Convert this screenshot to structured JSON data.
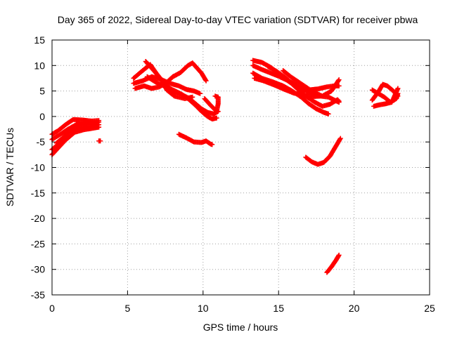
{
  "chart_data": {
    "type": "scatter",
    "title": "Day 365 of 2022, Sidereal Day-to-day VTEC variation (SDTVAR) for receiver pbwa",
    "xlabel": "GPS time / hours",
    "ylabel": "SDTVAR / TECUs",
    "xlim": [
      0,
      25
    ],
    "ylim": [
      -35,
      15
    ],
    "xticks": [
      0,
      5,
      10,
      15,
      20,
      25
    ],
    "yticks": [
      -35,
      -30,
      -25,
      -20,
      -15,
      -10,
      -5,
      0,
      5,
      10,
      15
    ],
    "grid": true,
    "marker": "plus",
    "series_color": "#ff0000",
    "tracks": [
      {
        "name": "t1",
        "points": [
          [
            0.0,
            -3.5
          ],
          [
            0.4,
            -2.8
          ],
          [
            0.9,
            -1.6
          ],
          [
            1.4,
            -0.6
          ],
          [
            2.0,
            -0.7
          ],
          [
            2.6,
            -0.9
          ],
          [
            3.1,
            -0.8
          ]
        ]
      },
      {
        "name": "t2",
        "points": [
          [
            0.0,
            -4.5
          ],
          [
            0.5,
            -3.6
          ],
          [
            1.0,
            -2.6
          ],
          [
            1.6,
            -1.6
          ],
          [
            2.2,
            -1.3
          ],
          [
            2.8,
            -1.2
          ],
          [
            3.1,
            -1.1
          ]
        ]
      },
      {
        "name": "t3",
        "points": [
          [
            0.0,
            -6.5
          ],
          [
            0.5,
            -5.2
          ],
          [
            1.0,
            -3.2
          ],
          [
            1.6,
            -2.4
          ],
          [
            2.2,
            -2.0
          ],
          [
            2.8,
            -1.8
          ],
          [
            3.1,
            -1.6
          ]
        ]
      },
      {
        "name": "t4",
        "points": [
          [
            0.0,
            -7.5
          ],
          [
            0.4,
            -6.2
          ],
          [
            0.9,
            -4.6
          ],
          [
            1.5,
            -3.1
          ],
          [
            2.1,
            -2.6
          ],
          [
            2.7,
            -2.3
          ],
          [
            3.1,
            -2.1
          ]
        ]
      },
      {
        "name": "t5",
        "points": [
          [
            0.3,
            -5.2
          ],
          [
            0.8,
            -4.0
          ],
          [
            1.3,
            -2.5
          ],
          [
            1.9,
            -1.5
          ],
          [
            2.5,
            -1.2
          ],
          [
            3.0,
            -1.2
          ]
        ]
      },
      {
        "name": "t6",
        "points": [
          [
            3.1,
            -4.8
          ],
          [
            3.2,
            -4.8
          ]
        ]
      },
      {
        "name": "t7",
        "points": [
          [
            5.4,
            7.5
          ],
          [
            6.0,
            9.0
          ],
          [
            6.5,
            10.2
          ],
          [
            6.9,
            8.5
          ],
          [
            7.3,
            7.0
          ],
          [
            7.6,
            5.2
          ],
          [
            8.1,
            4.0
          ],
          [
            8.8,
            3.5
          ],
          [
            9.3,
            3.8
          ]
        ]
      },
      {
        "name": "t8",
        "points": [
          [
            5.4,
            6.5
          ],
          [
            6.0,
            7.0
          ],
          [
            6.6,
            7.8
          ],
          [
            7.2,
            7.3
          ],
          [
            7.8,
            6.5
          ],
          [
            8.4,
            6.0
          ],
          [
            8.9,
            5.3
          ],
          [
            9.4,
            5.0
          ],
          [
            9.8,
            4.5
          ]
        ]
      },
      {
        "name": "t9",
        "points": [
          [
            5.5,
            5.5
          ],
          [
            6.1,
            6.0
          ],
          [
            6.6,
            5.5
          ],
          [
            7.1,
            5.8
          ],
          [
            7.6,
            6.7
          ],
          [
            8.0,
            7.8
          ],
          [
            8.5,
            8.6
          ],
          [
            9.0,
            10.0
          ],
          [
            9.3,
            10.5
          ],
          [
            9.6,
            9.5
          ],
          [
            9.9,
            8.5
          ],
          [
            10.2,
            7.0
          ]
        ]
      },
      {
        "name": "t10",
        "points": [
          [
            6.2,
            10.8
          ],
          [
            6.8,
            8.8
          ],
          [
            7.4,
            6.5
          ],
          [
            8.0,
            5.0
          ],
          [
            8.6,
            4.3
          ],
          [
            9.1,
            3.5
          ],
          [
            9.5,
            2.5
          ],
          [
            9.9,
            1.5
          ],
          [
            10.3,
            0.8
          ],
          [
            10.7,
            0.5
          ],
          [
            11.0,
            1.0
          ]
        ]
      },
      {
        "name": "t11",
        "points": [
          [
            6.3,
            7.8
          ],
          [
            7.0,
            6.5
          ],
          [
            7.8,
            5.5
          ],
          [
            8.5,
            4.5
          ],
          [
            9.0,
            3.5
          ],
          [
            9.5,
            2.2
          ],
          [
            9.9,
            1.0
          ],
          [
            10.3,
            0.0
          ],
          [
            10.6,
            -0.5
          ],
          [
            10.9,
            -0.3
          ]
        ]
      },
      {
        "name": "t12",
        "points": [
          [
            10.1,
            3.5
          ],
          [
            10.5,
            2.2
          ],
          [
            10.9,
            1.0
          ],
          [
            11.0,
            2.5
          ],
          [
            11.0,
            3.8
          ],
          [
            10.8,
            4.0
          ]
        ]
      },
      {
        "name": "t13",
        "points": [
          [
            8.4,
            -3.5
          ],
          [
            8.9,
            -4.2
          ],
          [
            9.4,
            -5.0
          ],
          [
            9.9,
            -5.1
          ],
          [
            10.2,
            -4.8
          ],
          [
            10.5,
            -5.4
          ],
          [
            10.6,
            -5.5
          ]
        ]
      },
      {
        "name": "t14",
        "points": [
          [
            13.3,
            11.0
          ],
          [
            13.9,
            10.6
          ],
          [
            14.5,
            9.6
          ],
          [
            15.1,
            8.2
          ],
          [
            15.7,
            6.8
          ],
          [
            16.2,
            5.8
          ],
          [
            16.7,
            5.2
          ],
          [
            17.2,
            4.5
          ],
          [
            17.7,
            4.0
          ]
        ]
      },
      {
        "name": "t15",
        "points": [
          [
            13.3,
            10.0
          ],
          [
            13.9,
            9.2
          ],
          [
            14.5,
            8.5
          ],
          [
            15.0,
            7.9
          ],
          [
            15.5,
            7.2
          ],
          [
            16.0,
            6.5
          ],
          [
            16.5,
            5.5
          ],
          [
            17.0,
            5.2
          ],
          [
            17.6,
            5.4
          ],
          [
            18.2,
            5.8
          ],
          [
            18.7,
            6.0
          ],
          [
            19.0,
            6.0
          ]
        ]
      },
      {
        "name": "t16",
        "points": [
          [
            13.3,
            8.5
          ],
          [
            13.9,
            7.5
          ],
          [
            14.6,
            6.8
          ],
          [
            15.3,
            6.0
          ],
          [
            15.9,
            5.0
          ],
          [
            16.5,
            3.8
          ],
          [
            17.0,
            2.5
          ],
          [
            17.5,
            1.5
          ],
          [
            18.0,
            0.8
          ],
          [
            18.3,
            0.5
          ]
        ]
      },
      {
        "name": "t17",
        "points": [
          [
            13.4,
            7.5
          ],
          [
            14.0,
            7.0
          ],
          [
            14.7,
            6.2
          ],
          [
            15.4,
            5.3
          ],
          [
            16.0,
            4.6
          ],
          [
            16.6,
            4.2
          ],
          [
            17.2,
            3.9
          ],
          [
            17.8,
            4.0
          ],
          [
            18.3,
            3.8
          ],
          [
            18.7,
            3.2
          ],
          [
            19.0,
            2.8
          ]
        ]
      },
      {
        "name": "t18",
        "points": [
          [
            14.3,
            9.8
          ],
          [
            14.9,
            8.8
          ],
          [
            15.5,
            7.5
          ],
          [
            16.1,
            5.8
          ],
          [
            16.8,
            4.0
          ],
          [
            17.4,
            2.8
          ],
          [
            17.9,
            2.0
          ],
          [
            18.4,
            2.4
          ],
          [
            18.9,
            3.3
          ],
          [
            19.0,
            3.0
          ]
        ]
      },
      {
        "name": "t19",
        "points": [
          [
            15.3,
            9.0
          ],
          [
            15.8,
            7.8
          ],
          [
            16.3,
            6.8
          ],
          [
            16.8,
            5.8
          ],
          [
            17.3,
            4.8
          ],
          [
            17.9,
            4.0
          ],
          [
            18.5,
            5.0
          ],
          [
            19.0,
            7.2
          ]
        ]
      },
      {
        "name": "t20",
        "points": [
          [
            16.8,
            -8.0
          ],
          [
            17.2,
            -8.9
          ],
          [
            17.6,
            -9.4
          ],
          [
            18.0,
            -9.0
          ],
          [
            18.4,
            -7.8
          ],
          [
            18.8,
            -5.8
          ],
          [
            19.1,
            -4.3
          ]
        ]
      },
      {
        "name": "t21",
        "points": [
          [
            18.2,
            -30.6
          ],
          [
            18.5,
            -29.5
          ],
          [
            18.8,
            -28.2
          ],
          [
            19.0,
            -27.2
          ]
        ]
      },
      {
        "name": "t22",
        "points": [
          [
            21.2,
            3.2
          ],
          [
            21.6,
            4.8
          ],
          [
            21.9,
            6.3
          ],
          [
            22.2,
            6.0
          ],
          [
            22.6,
            5.0
          ],
          [
            22.9,
            4.0
          ]
        ]
      },
      {
        "name": "t23",
        "points": [
          [
            21.2,
            5.2
          ],
          [
            21.6,
            4.5
          ],
          [
            22.0,
            3.8
          ],
          [
            22.4,
            2.8
          ],
          [
            22.8,
            3.5
          ],
          [
            22.9,
            4.5
          ]
        ]
      },
      {
        "name": "t24",
        "points": [
          [
            21.3,
            2.0
          ],
          [
            21.7,
            2.3
          ],
          [
            22.1,
            2.5
          ],
          [
            22.5,
            2.8
          ],
          [
            22.9,
            5.5
          ]
        ]
      }
    ]
  }
}
